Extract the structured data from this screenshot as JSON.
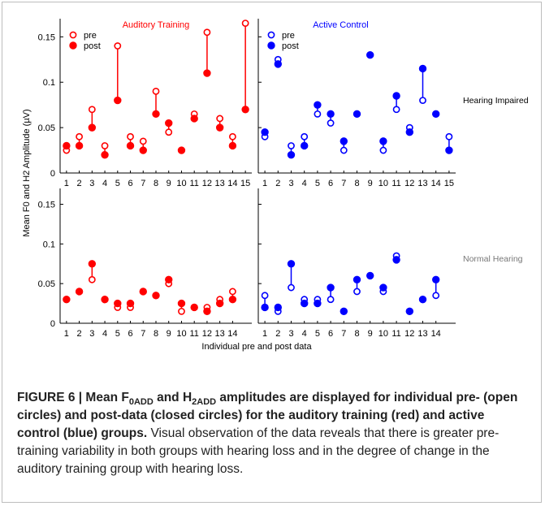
{
  "colors": {
    "red": "#ff0000",
    "blue": "#0000ff",
    "axis": "#000000",
    "gray": "#777777"
  },
  "figure": {
    "ylabel": "Mean F0 and H2 Amplitude (µV)",
    "xlabel": "Individual pre and post data"
  },
  "chart_data": [
    {
      "type": "scatter",
      "panel": "top-left",
      "title": "Auditory Training",
      "legend": [
        "pre",
        "post"
      ],
      "legend_position": "top-left",
      "ylim": [
        0,
        0.17
      ],
      "yticks": [
        0,
        0.05,
        0.1,
        0.15
      ],
      "ytick_labels": [
        "0",
        "0.05",
        "0.1",
        "0.15"
      ],
      "x": [
        1,
        2,
        3,
        4,
        5,
        6,
        7,
        8,
        9,
        10,
        11,
        12,
        13,
        14,
        15
      ],
      "series": [
        {
          "name": "pre",
          "values": [
            0.025,
            0.04,
            0.07,
            0.03,
            0.14,
            0.04,
            0.035,
            0.09,
            0.045,
            0.025,
            0.065,
            0.155,
            0.06,
            0.04,
            0.165
          ]
        },
        {
          "name": "post",
          "values": [
            0.03,
            0.03,
            0.05,
            0.02,
            0.08,
            0.03,
            0.025,
            0.065,
            0.055,
            0.025,
            0.06,
            0.11,
            0.05,
            0.03,
            0.07
          ]
        }
      ]
    },
    {
      "type": "scatter",
      "panel": "top-right",
      "title": "Active Control",
      "annotation": "Hearing Impaired",
      "legend": [
        "pre",
        "post"
      ],
      "legend_position": "top-left",
      "ylim": [
        0,
        0.17
      ],
      "yticks": [
        0,
        0.05,
        0.1,
        0.15
      ],
      "ytick_labels": [
        "0",
        "0.05",
        "0.1",
        "0.15"
      ],
      "x": [
        1,
        2,
        3,
        4,
        5,
        6,
        7,
        8,
        9,
        10,
        11,
        12,
        13,
        14,
        15
      ],
      "series": [
        {
          "name": "pre",
          "values": [
            0.04,
            0.125,
            0.03,
            0.04,
            0.065,
            0.055,
            0.025,
            0.065,
            0.13,
            0.025,
            0.07,
            0.05,
            0.08,
            0.065,
            0.04
          ]
        },
        {
          "name": "post",
          "values": [
            0.045,
            0.12,
            0.02,
            0.03,
            0.075,
            0.065,
            0.035,
            0.065,
            0.13,
            0.035,
            0.085,
            0.045,
            0.115,
            0.065,
            0.025
          ]
        }
      ]
    },
    {
      "type": "scatter",
      "panel": "bottom-left",
      "ylim": [
        0,
        0.17
      ],
      "yticks": [
        0,
        0.05,
        0.1,
        0.15
      ],
      "ytick_labels": [
        "0",
        "0.05",
        "0.1",
        "0.15"
      ],
      "x": [
        1,
        2,
        3,
        4,
        5,
        6,
        7,
        8,
        9,
        10,
        11,
        12,
        13,
        14
      ],
      "series": [
        {
          "name": "pre",
          "values": [
            0.03,
            0.04,
            0.055,
            0.03,
            0.02,
            0.02,
            0.04,
            0.035,
            0.05,
            0.015,
            0.02,
            0.02,
            0.03,
            0.04
          ]
        },
        {
          "name": "post",
          "values": [
            0.03,
            0.04,
            0.075,
            0.03,
            0.025,
            0.025,
            0.04,
            0.035,
            0.055,
            0.025,
            0.02,
            0.015,
            0.025,
            0.03
          ]
        }
      ]
    },
    {
      "type": "scatter",
      "panel": "bottom-right",
      "annotation": "Normal Hearing",
      "ylim": [
        0,
        0.17
      ],
      "yticks": [
        0,
        0.05,
        0.1,
        0.15
      ],
      "ytick_labels": [
        "0",
        "0.05",
        "0.1",
        "0.15"
      ],
      "x": [
        1,
        2,
        3,
        4,
        5,
        6,
        7,
        8,
        9,
        10,
        11,
        12,
        13,
        14
      ],
      "series": [
        {
          "name": "pre",
          "values": [
            0.035,
            0.015,
            0.045,
            0.03,
            0.03,
            0.03,
            0.015,
            0.04,
            0.06,
            0.04,
            0.085,
            0.015,
            0.03,
            0.035
          ]
        },
        {
          "name": "post",
          "values": [
            0.02,
            0.02,
            0.075,
            0.025,
            0.025,
            0.045,
            0.015,
            0.055,
            0.06,
            0.045,
            0.08,
            0.015,
            0.03,
            0.055
          ]
        }
      ]
    }
  ],
  "caption": {
    "fig_label": "FIGURE 6 | Mean F",
    "sub1": "0ADD",
    "and": " and H",
    "sub2": "2ADD",
    "bold_rest": " amplitudes are displayed for individual pre- (open circles) and post-data (closed circles) for the auditory training (red) and active control (blue) groups.",
    "body": " Visual observation of the data reveals that there is greater pre-training variability in both groups with hearing loss and in the degree of change in the auditory training group with hearing loss."
  }
}
